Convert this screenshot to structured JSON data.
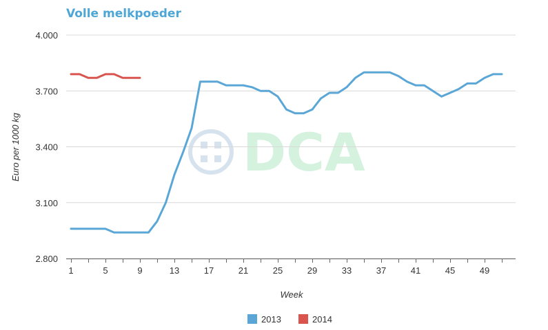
{
  "chart_data": {
    "type": "line",
    "title": "Volle melkpoeder",
    "xlabel": "Week",
    "ylabel": "Euro per 1000 kg",
    "xlim": [
      1,
      52
    ],
    "ylim": [
      2800,
      4000
    ],
    "x_ticks": [
      1,
      5,
      9,
      13,
      17,
      21,
      25,
      29,
      33,
      37,
      41,
      45,
      49
    ],
    "y_ticks": [
      2800,
      3100,
      3400,
      3700,
      4000
    ],
    "y_tick_labels": [
      "2.800",
      "3.100",
      "3.400",
      "3.700",
      "4.000"
    ],
    "grid": "horizontal",
    "legend_position": "bottom-center",
    "watermark": "DCA",
    "series": [
      {
        "name": "2013",
        "color": "#5aa6d6",
        "x": [
          1,
          2,
          3,
          4,
          5,
          6,
          7,
          8,
          9,
          10,
          11,
          12,
          13,
          14,
          15,
          16,
          17,
          18,
          19,
          20,
          21,
          22,
          23,
          24,
          25,
          26,
          27,
          28,
          29,
          30,
          31,
          32,
          33,
          34,
          35,
          36,
          37,
          38,
          39,
          40,
          41,
          42,
          43,
          44,
          45,
          46,
          47,
          48,
          49,
          50,
          51
        ],
        "values": [
          2960,
          2960,
          2960,
          2960,
          2960,
          2940,
          2940,
          2940,
          2940,
          2940,
          3000,
          3100,
          3250,
          3370,
          3500,
          3750,
          3750,
          3750,
          3730,
          3730,
          3730,
          3720,
          3700,
          3700,
          3670,
          3600,
          3580,
          3580,
          3600,
          3660,
          3690,
          3690,
          3720,
          3770,
          3800,
          3800,
          3800,
          3800,
          3780,
          3750,
          3730,
          3730,
          3700,
          3670,
          3690,
          3710,
          3740,
          3740,
          3770,
          3790,
          3790
        ]
      },
      {
        "name": "2014",
        "color": "#d9534f",
        "x": [
          1,
          2,
          3,
          4,
          5,
          6,
          7,
          8,
          9
        ],
        "values": [
          3790,
          3790,
          3770,
          3770,
          3790,
          3790,
          3770,
          3770,
          3770
        ]
      }
    ]
  }
}
